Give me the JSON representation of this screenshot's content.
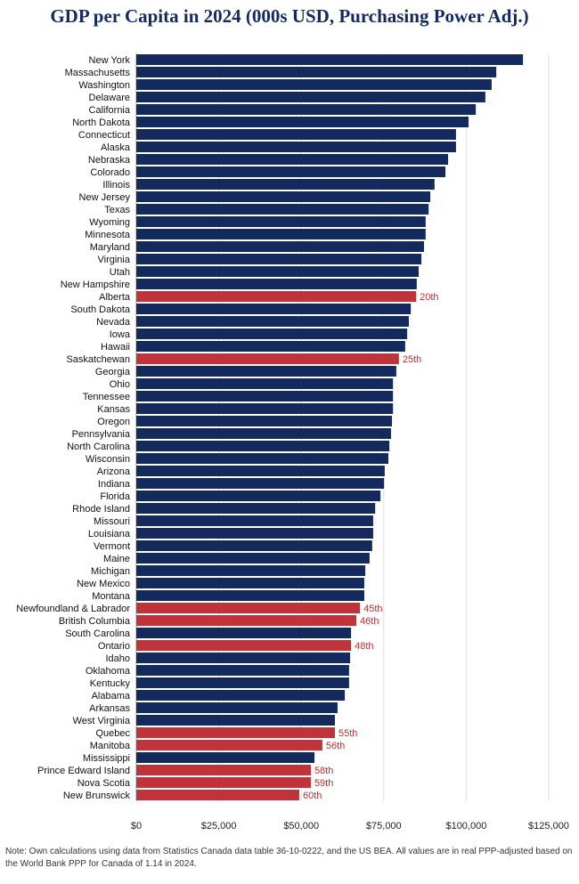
{
  "chart_data": {
    "type": "bar",
    "orientation": "horizontal",
    "title": "GDP per Capita in 2024 (000s USD, Purchasing Power Adj.)",
    "categories": [
      "New York",
      "Massachusetts",
      "Washington",
      "Delaware",
      "California",
      "North Dakota",
      "Connecticut",
      "Alaska",
      "Nebraska",
      "Colorado",
      "Illinois",
      "New Jersey",
      "Texas",
      "Wyoming",
      "Minnesota",
      "Maryland",
      "Virginia",
      "Utah",
      "New Hampshire",
      "Alberta",
      "South Dakota",
      "Nevada",
      "Iowa",
      "Hawaii",
      "Saskatchewan",
      "Georgia",
      "Ohio",
      "Tennessee",
      "Kansas",
      "Oregon",
      "Pennsylvania",
      "North Carolina",
      "Wisconsin",
      "Arizona",
      "Indiana",
      "Florida",
      "Rhode Island",
      "Missouri",
      "Louisiana",
      "Vermont",
      "Maine",
      "Michigan",
      "New Mexico",
      "Montana",
      "Newfoundland & Labrador",
      "British Columbia",
      "South Carolina",
      "Ontario",
      "Idaho",
      "Oklahoma",
      "Kentucky",
      "Alabama",
      "Arkansas",
      "West Virginia",
      "Quebec",
      "Manitoba",
      "Mississippi",
      "Prince Edward Island",
      "Nova Scotia",
      "New Brunswick"
    ],
    "values": [
      117200,
      109100,
      107700,
      105800,
      102900,
      100700,
      96900,
      96900,
      94500,
      93700,
      90400,
      89100,
      88600,
      87700,
      87700,
      87200,
      86400,
      85600,
      85000,
      84800,
      83200,
      82600,
      82100,
      81500,
      79600,
      78800,
      77800,
      77800,
      77800,
      77500,
      77200,
      76700,
      76400,
      75300,
      75100,
      74000,
      72400,
      71800,
      71800,
      71500,
      70700,
      69400,
      69100,
      69100,
      67800,
      66700,
      65100,
      65100,
      64800,
      64500,
      64500,
      63200,
      61000,
      60200,
      60200,
      56400,
      54000,
      52900,
      52900,
      49400
    ],
    "colors": [
      "#142a5e",
      "#142a5e",
      "#142a5e",
      "#142a5e",
      "#142a5e",
      "#142a5e",
      "#142a5e",
      "#142a5e",
      "#142a5e",
      "#142a5e",
      "#142a5e",
      "#142a5e",
      "#142a5e",
      "#142a5e",
      "#142a5e",
      "#142a5e",
      "#142a5e",
      "#142a5e",
      "#142a5e",
      "#c0333a",
      "#142a5e",
      "#142a5e",
      "#142a5e",
      "#142a5e",
      "#c0333a",
      "#142a5e",
      "#142a5e",
      "#142a5e",
      "#142a5e",
      "#142a5e",
      "#142a5e",
      "#142a5e",
      "#142a5e",
      "#142a5e",
      "#142a5e",
      "#142a5e",
      "#142a5e",
      "#142a5e",
      "#142a5e",
      "#142a5e",
      "#142a5e",
      "#142a5e",
      "#142a5e",
      "#142a5e",
      "#c0333a",
      "#c0333a",
      "#142a5e",
      "#c0333a",
      "#142a5e",
      "#142a5e",
      "#142a5e",
      "#142a5e",
      "#142a5e",
      "#142a5e",
      "#c0333a",
      "#c0333a",
      "#142a5e",
      "#c0333a",
      "#c0333a",
      "#c0333a"
    ],
    "rank_labels": [
      null,
      null,
      null,
      null,
      null,
      null,
      null,
      null,
      null,
      null,
      null,
      null,
      null,
      null,
      null,
      null,
      null,
      null,
      null,
      "20th",
      null,
      null,
      null,
      null,
      "25th",
      null,
      null,
      null,
      null,
      null,
      null,
      null,
      null,
      null,
      null,
      null,
      null,
      null,
      null,
      null,
      null,
      null,
      null,
      null,
      "45th",
      "46th",
      null,
      "48th",
      null,
      null,
      null,
      null,
      null,
      null,
      "55th",
      "56th",
      null,
      "58th",
      "59th",
      "60th"
    ],
    "xlim": [
      0,
      125000
    ],
    "xticks": [
      {
        "value": 0,
        "label": "$0"
      },
      {
        "value": 25000,
        "label": "$25,000"
      },
      {
        "value": 50000,
        "label": "$50,000"
      },
      {
        "value": 75000,
        "label": "$75,000"
      },
      {
        "value": 100000,
        "label": "$100,000"
      },
      {
        "value": 125000,
        "label": "$125,000"
      }
    ],
    "grid": true,
    "note": "Note: Own calculations using data from Statistics Canada data table 36-10-0222, and the US BEA. All values are in real PPP-adjusted based on the World Bank PPP for Canada of 1.14 in 2024."
  }
}
